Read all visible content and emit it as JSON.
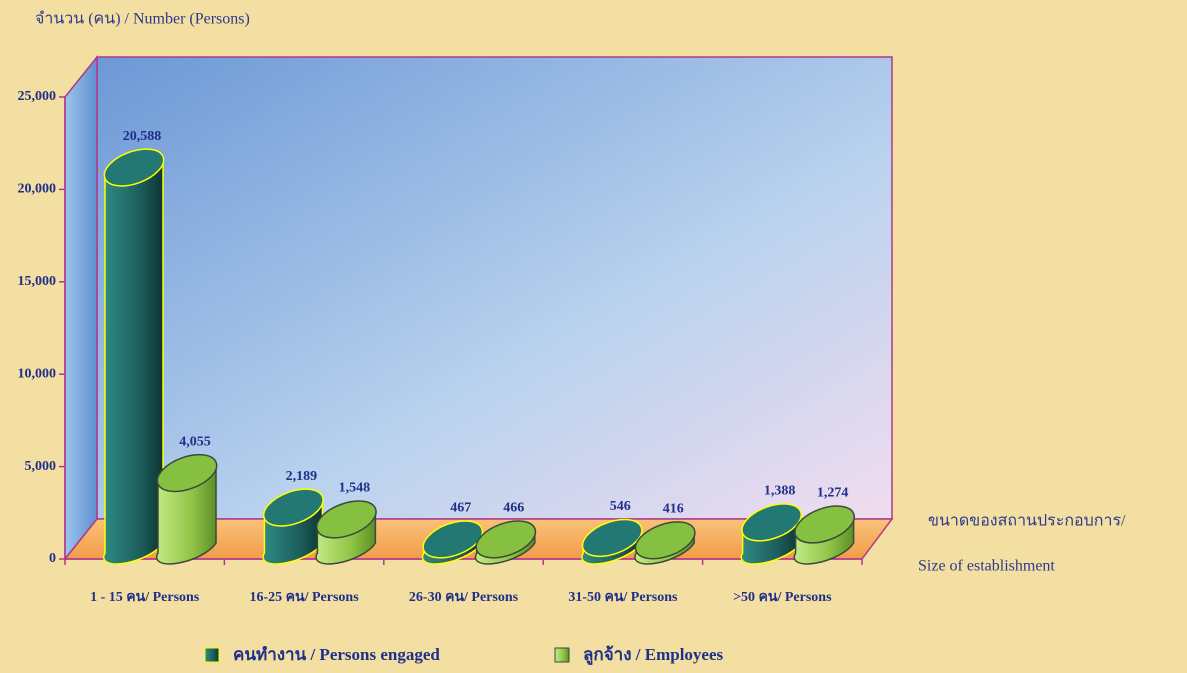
{
  "chart_data": {
    "type": "bar",
    "y_label": "จำนวน (คน) / Number  (Persons)",
    "x_label": [
      "ขนาดของสถานประกอบการ/",
      "Size of establishment"
    ],
    "categories": [
      "1 - 15 คน/ Persons",
      "16-25 คน/ Persons",
      "26-30 คน/ Persons",
      "31-50 คน/ Persons",
      ">50 คน/ Persons"
    ],
    "series": [
      {
        "name": "คนทำงาน / Persons engaged",
        "color": "#1f6e6a",
        "values": [
          20588,
          2189,
          467,
          546,
          1388
        ],
        "value_labels": [
          "20,588",
          "2,189",
          "467",
          "546",
          "1,388"
        ]
      },
      {
        "name": "ลูกจ้าง / Employees",
        "color": "#9bd04e",
        "values": [
          4055,
          1548,
          466,
          416,
          1274
        ],
        "value_labels": [
          "4,055",
          "1,548",
          "466",
          "416",
          "1,274"
        ]
      }
    ],
    "ylim": [
      0,
      25000
    ],
    "yticks": [
      0,
      {
        "value": 5000,
        "label": "5,000"
      },
      {
        "value": 10000,
        "label": "10,000"
      },
      {
        "value": 15000,
        "label": "15,000"
      },
      {
        "value": 20000,
        "label": "20,000"
      },
      {
        "value": 25000,
        "label": "25,000"
      }
    ]
  }
}
